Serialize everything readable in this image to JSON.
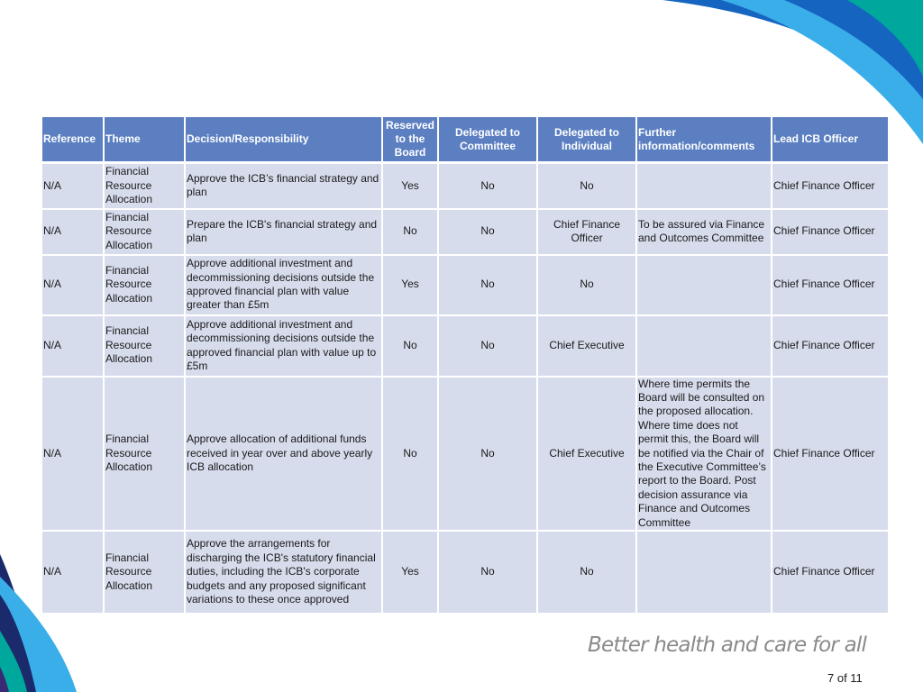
{
  "colors": {
    "header_bg": "#5b7fc1",
    "cell_bg": "#d7dcec",
    "brand_blue": "#1565c0",
    "brand_light_blue": "#3aaee8",
    "brand_teal": "#00a79d",
    "brand_navy": "#1b2a6b",
    "brand_purple": "#3a2a73"
  },
  "table": {
    "headers": {
      "reference": "Reference",
      "theme": "Theme",
      "decision": "Decision/Responsibility",
      "reserved": "Reserved to the Board",
      "delegated_committee": "Delegated to Committee",
      "delegated_individual": "Delegated to Individual",
      "further_info": "Further information/comments",
      "lead_officer": "Lead ICB Officer"
    },
    "rows": [
      {
        "reference": "N/A",
        "theme": "Financial Resource Allocation",
        "decision": "Approve the ICB’s financial strategy and plan",
        "reserved": "Yes",
        "delegated_committee": "No",
        "delegated_individual": "No",
        "further_info": "",
        "lead_officer": "Chief Finance Officer"
      },
      {
        "reference": "N/A",
        "theme": "Financial Resource Allocation",
        "decision": "Prepare the ICB's financial strategy and plan",
        "reserved": "No",
        "delegated_committee": "No",
        "delegated_individual": "Chief Finance Officer",
        "further_info": "To be assured via Finance and Outcomes Committee",
        "lead_officer": "Chief Finance Officer"
      },
      {
        "reference": "N/A",
        "theme": "Financial Resource Allocation",
        "decision": "Approve additional investment and decommissioning decisions outside the approved financial plan with value greater than £5m",
        "reserved": "Yes",
        "delegated_committee": "No",
        "delegated_individual": "No",
        "further_info": "",
        "lead_officer": "Chief Finance Officer"
      },
      {
        "reference": "N/A",
        "theme": "Financial Resource Allocation",
        "decision": "Approve additional investment and decommissioning decisions outside the approved financial plan with value up to £5m",
        "reserved": "No",
        "delegated_committee": "No",
        "delegated_individual": "Chief Executive",
        "further_info": "",
        "lead_officer": "Chief Finance Officer"
      },
      {
        "reference": "N/A",
        "theme": "Financial Resource Allocation",
        "decision": "Approve allocation of additional funds received in year over and above yearly ICB allocation",
        "reserved": "No",
        "delegated_committee": "No",
        "delegated_individual": "Chief Executive",
        "further_info": "Where time permits the Board will be consulted on the proposed allocation. Where time does not permit this, the Board will be notified via the Chair of the Executive Committee’s report to the Board. Post decision assurance via Finance and Outcomes Committee",
        "lead_officer": "Chief Finance Officer"
      },
      {
        "reference": "N/A",
        "theme": "Financial Resource Allocation",
        "decision": "Approve the arrangements for discharging the ICB's statutory financial duties, including the ICB's corporate budgets and any proposed significant variations to these once approved",
        "reserved": "Yes",
        "delegated_committee": "No",
        "delegated_individual": "No",
        "further_info": "",
        "lead_officer": "Chief Finance Officer"
      }
    ]
  },
  "footer": {
    "slogan": "Better health and care for all",
    "page_number": "7 of 11"
  }
}
